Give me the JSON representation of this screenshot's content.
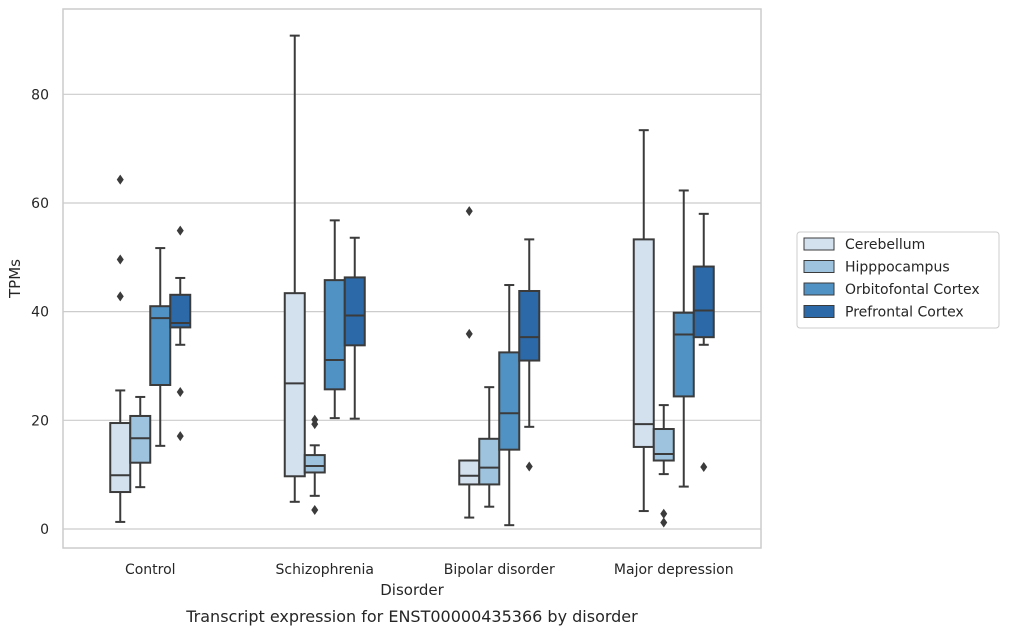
{
  "chart_data": {
    "type": "box",
    "caption": "Transcript expression for ENST00000435366 by disorder",
    "xlabel": "Disorder",
    "ylabel": "TPMs",
    "ylim": [
      -3.5,
      95.7
    ],
    "yticks": [
      0,
      20,
      40,
      60,
      80
    ],
    "grid": "horizontal",
    "legend_position": "right",
    "categories": [
      "Control",
      "Schizophrenia",
      "Bipolar disorder",
      "Major depression"
    ],
    "series": [
      {
        "name": "Cerebellum",
        "color": "#d3e1ef",
        "boxes": [
          {
            "whisker_low": 1.3,
            "q1": 6.8,
            "median": 9.9,
            "q3": 19.5,
            "whisker_high": 25.5,
            "outliers": [
              42.8,
              49.6,
              64.3
            ]
          },
          {
            "whisker_low": 5.0,
            "q1": 9.7,
            "median": 26.8,
            "q3": 43.4,
            "whisker_high": 90.8,
            "outliers": []
          },
          {
            "whisker_low": 2.1,
            "q1": 8.2,
            "median": 9.8,
            "q3": 12.6,
            "whisker_high": 12.6,
            "outliers": [
              35.9,
              58.5
            ]
          },
          {
            "whisker_low": 3.3,
            "q1": 15.1,
            "median": 19.3,
            "q3": 53.3,
            "whisker_high": 73.4,
            "outliers": []
          }
        ]
      },
      {
        "name": "Hipppocampus",
        "color": "#9dc3de",
        "boxes": [
          {
            "whisker_low": 7.7,
            "q1": 12.2,
            "median": 16.7,
            "q3": 20.8,
            "whisker_high": 24.3,
            "outliers": []
          },
          {
            "whisker_low": 6.1,
            "q1": 10.4,
            "median": 11.6,
            "q3": 13.6,
            "whisker_high": 15.4,
            "outliers": [
              3.5,
              19.3,
              20.1
            ]
          },
          {
            "whisker_low": 4.1,
            "q1": 8.2,
            "median": 11.3,
            "q3": 16.6,
            "whisker_high": 26.1,
            "outliers": []
          },
          {
            "whisker_low": 10.1,
            "q1": 12.6,
            "median": 13.8,
            "q3": 18.4,
            "whisker_high": 22.8,
            "outliers": [
              1.2,
              2.8
            ]
          }
        ]
      },
      {
        "name": "Orbitofontal Cortex",
        "color": "#5192c4",
        "boxes": [
          {
            "whisker_low": 15.3,
            "q1": 26.5,
            "median": 38.8,
            "q3": 41.0,
            "whisker_high": 51.7,
            "outliers": []
          },
          {
            "whisker_low": 20.4,
            "q1": 25.7,
            "median": 31.1,
            "q3": 45.8,
            "whisker_high": 56.8,
            "outliers": []
          },
          {
            "whisker_low": 0.7,
            "q1": 14.6,
            "median": 21.3,
            "q3": 32.5,
            "whisker_high": 44.9,
            "outliers": []
          },
          {
            "whisker_low": 7.8,
            "q1": 24.4,
            "median": 35.8,
            "q3": 39.8,
            "whisker_high": 62.3,
            "outliers": []
          }
        ]
      },
      {
        "name": "Prefrontal Cortex",
        "color": "#2b69a8",
        "boxes": [
          {
            "whisker_low": 33.9,
            "q1": 37.1,
            "median": 37.9,
            "q3": 43.1,
            "whisker_high": 46.2,
            "outliers": [
              17.1,
              25.2,
              54.9
            ]
          },
          {
            "whisker_low": 20.3,
            "q1": 33.8,
            "median": 39.3,
            "q3": 46.3,
            "whisker_high": 53.6,
            "outliers": []
          },
          {
            "whisker_low": 18.8,
            "q1": 31.0,
            "median": 35.3,
            "q3": 43.8,
            "whisker_high": 53.3,
            "outliers": [
              11.5
            ]
          },
          {
            "whisker_low": 33.9,
            "q1": 35.3,
            "median": 40.2,
            "q3": 48.3,
            "whisker_high": 58.0,
            "outliers": [
              11.4
            ]
          }
        ]
      }
    ]
  }
}
